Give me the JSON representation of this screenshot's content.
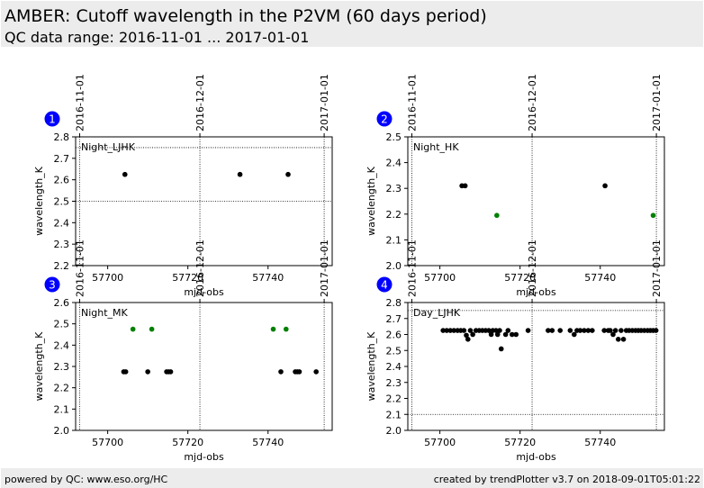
{
  "page": {
    "title": "AMBER: Cutoff wavelength in the P2VM (60 days period)",
    "subtitle": "QC data range: 2016-11-01 ... 2017-01-01",
    "footer_left": "powered by QC: www.eso.org/HC",
    "footer_right": "created by trendPlotter v3.7 on 2018-09-01T05:01:22"
  },
  "colors": {
    "normal": "#000000",
    "highlight": "#008000",
    "badge": "#0000ff",
    "header_bg": "#ececec"
  },
  "chart_data": [
    {
      "type": "scatter",
      "panel_number": "1",
      "annotation": "Night_LJHK",
      "xlabel": "mjd-obs",
      "ylabel": "wavelength_K",
      "xlim": [
        57692,
        57756
      ],
      "ylim": [
        2.2,
        2.8
      ],
      "xticks": [
        57700,
        57720,
        57740
      ],
      "yticks": [
        2.2,
        2.3,
        2.4,
        2.5,
        2.6,
        2.7,
        2.8
      ],
      "date_markers": [
        {
          "label": "2016-11-01",
          "x": 57693
        },
        {
          "label": "2016-12-01",
          "x": 57723
        },
        {
          "label": "2017-01-01",
          "x": 57754
        }
      ],
      "reference_lines": [
        2.5,
        2.75
      ],
      "series": [
        {
          "color": "#000000",
          "x": [
            57704.3,
            57733.0,
            57745.0
          ],
          "y": [
            2.625,
            2.625,
            2.625
          ]
        }
      ]
    },
    {
      "type": "scatter",
      "panel_number": "2",
      "annotation": "Night_HK",
      "xlabel": "mjd-obs",
      "ylabel": "wavelength_K",
      "xlim": [
        57692,
        57756
      ],
      "ylim": [
        2.0,
        2.5
      ],
      "xticks": [
        57700,
        57720,
        57740
      ],
      "yticks": [
        2.0,
        2.1,
        2.2,
        2.3,
        2.4,
        2.5
      ],
      "date_markers": [
        {
          "label": "2016-11-01",
          "x": 57693
        },
        {
          "label": "2016-12-01",
          "x": 57723
        },
        {
          "label": "2017-01-01",
          "x": 57754
        }
      ],
      "reference_lines": [],
      "series": [
        {
          "color": "#000000",
          "x": [
            57705.5,
            57706.3,
            57741.2
          ],
          "y": [
            2.31,
            2.31,
            2.31
          ]
        },
        {
          "color": "#008000",
          "x": [
            57714.2,
            57753.2
          ],
          "y": [
            2.195,
            2.195
          ]
        }
      ]
    },
    {
      "type": "scatter",
      "panel_number": "3",
      "annotation": "Night_MK",
      "xlabel": "mjd-obs",
      "ylabel": "wavelength_K",
      "xlim": [
        57692,
        57756
      ],
      "ylim": [
        2.0,
        2.6
      ],
      "xticks": [
        57700,
        57720,
        57740
      ],
      "yticks": [
        2.0,
        2.1,
        2.2,
        2.3,
        2.4,
        2.5,
        2.6
      ],
      "date_markers": [
        {
          "label": "2016-11-01",
          "x": 57693
        },
        {
          "label": "2016-12-01",
          "x": 57723
        },
        {
          "label": "2017-01-01",
          "x": 57754
        }
      ],
      "reference_lines": [],
      "series": [
        {
          "color": "#000000",
          "x": [
            57704.0,
            57704.5,
            57710.0,
            57714.7,
            57715.2,
            57715.7,
            57743.2,
            57746.8,
            57747.3,
            57747.8,
            57752.0
          ],
          "y": [
            2.275,
            2.275,
            2.275,
            2.275,
            2.275,
            2.275,
            2.275,
            2.275,
            2.275,
            2.275,
            2.275
          ]
        },
        {
          "color": "#008000",
          "x": [
            57706.3,
            57711.0,
            57741.3,
            57744.5
          ],
          "y": [
            2.475,
            2.475,
            2.475,
            2.475
          ]
        }
      ]
    },
    {
      "type": "scatter",
      "panel_number": "4",
      "annotation": "Day_LJHK",
      "xlabel": "mjd-obs",
      "ylabel": "wavelength_K",
      "xlim": [
        57692,
        57756
      ],
      "ylim": [
        2.0,
        2.8
      ],
      "xticks": [
        57700,
        57720,
        57740
      ],
      "yticks": [
        2.0,
        2.1,
        2.2,
        2.3,
        2.4,
        2.5,
        2.6,
        2.7,
        2.8
      ],
      "date_markers": [
        {
          "label": "2016-11-01",
          "x": 57693
        },
        {
          "label": "2016-12-01",
          "x": 57723
        },
        {
          "label": "2017-01-01",
          "x": 57754
        }
      ],
      "reference_lines": [
        2.1,
        2.75
      ],
      "series": [
        {
          "color": "#000000",
          "x": [
            57700.8,
            57701.7,
            57702.6,
            57703.5,
            57704.4,
            57705.2,
            57706.0,
            57706.6,
            57707.0,
            57707.6,
            57708.2,
            57709.0,
            57709.8,
            57710.6,
            57711.4,
            57712.2,
            57712.8,
            57713.2,
            57714.0,
            57714.4,
            57714.9,
            57715.3,
            57716.4,
            57717.0,
            57718.0,
            57719.0,
            57722.0,
            57727.0,
            57728.0,
            57730.0,
            57732.5,
            57733.5,
            57734.2,
            57735.0,
            57736.0,
            57737.0,
            57738.0,
            57741.0,
            57742.0,
            57742.5,
            57743.2,
            57743.8,
            57744.5,
            57745.2,
            57745.8,
            57746.5,
            57747.2,
            57748.0,
            57748.8,
            57749.5,
            57750.2,
            57751.0,
            57751.8,
            57752.5,
            57753.2,
            57753.9
          ],
          "y": [
            2.625,
            2.625,
            2.625,
            2.625,
            2.625,
            2.625,
            2.625,
            2.595,
            2.57,
            2.625,
            2.6,
            2.625,
            2.625,
            2.625,
            2.625,
            2.625,
            2.6,
            2.625,
            2.625,
            2.6,
            2.625,
            2.51,
            2.6,
            2.625,
            2.6,
            2.6,
            2.625,
            2.625,
            2.625,
            2.625,
            2.625,
            2.6,
            2.625,
            2.625,
            2.625,
            2.625,
            2.625,
            2.625,
            2.625,
            2.625,
            2.6,
            2.625,
            2.57,
            2.625,
            2.57,
            2.625,
            2.625,
            2.625,
            2.625,
            2.625,
            2.625,
            2.625,
            2.625,
            2.625,
            2.625,
            2.625
          ]
        }
      ]
    }
  ]
}
